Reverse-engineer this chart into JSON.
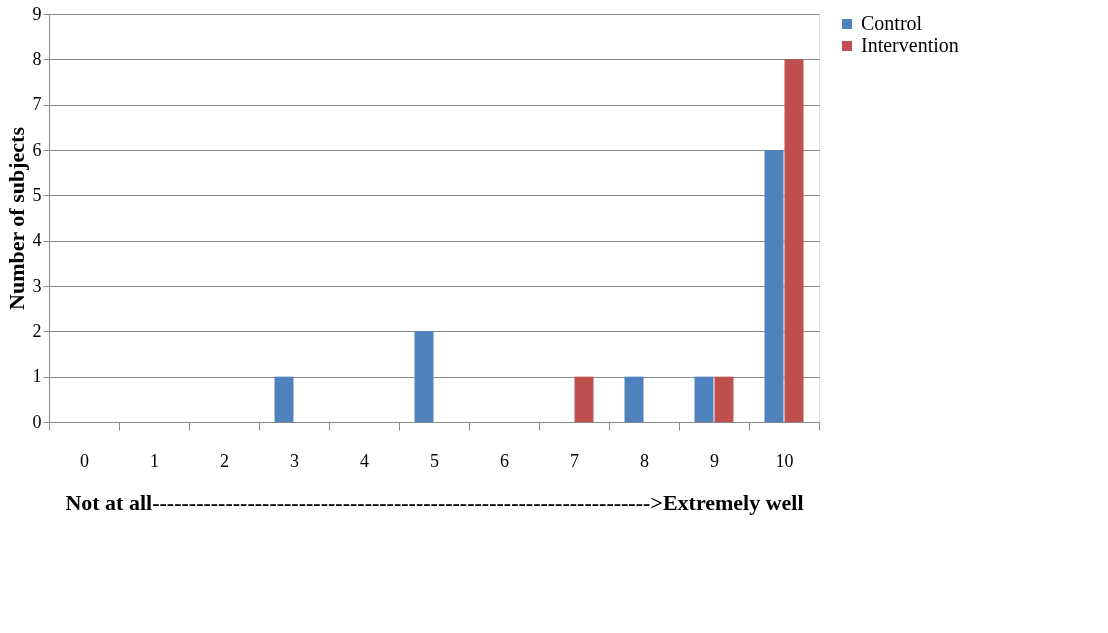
{
  "chart_data": {
    "type": "bar",
    "xlabel": "Not at all-------------------------------------------------------------------->Extremely well",
    "ylabel": "Number of subjects",
    "categories": [
      "0",
      "1",
      "2",
      "3",
      "4",
      "5",
      "6",
      "7",
      "8",
      "9",
      "10"
    ],
    "series": [
      {
        "name": "Control",
        "color": "#4f81bd",
        "values": [
          0,
          0,
          0,
          1,
          0,
          2,
          0,
          0,
          1,
          1,
          6
        ]
      },
      {
        "name": "Intervention",
        "color": "#c0504d",
        "values": [
          0,
          0,
          0,
          0,
          0,
          0,
          0,
          1,
          0,
          1,
          8
        ]
      }
    ],
    "ylim": [
      0,
      9
    ],
    "yticks": [
      0,
      1,
      2,
      3,
      4,
      5,
      6,
      7,
      8,
      9
    ],
    "grid": "y",
    "legend": "right"
  }
}
